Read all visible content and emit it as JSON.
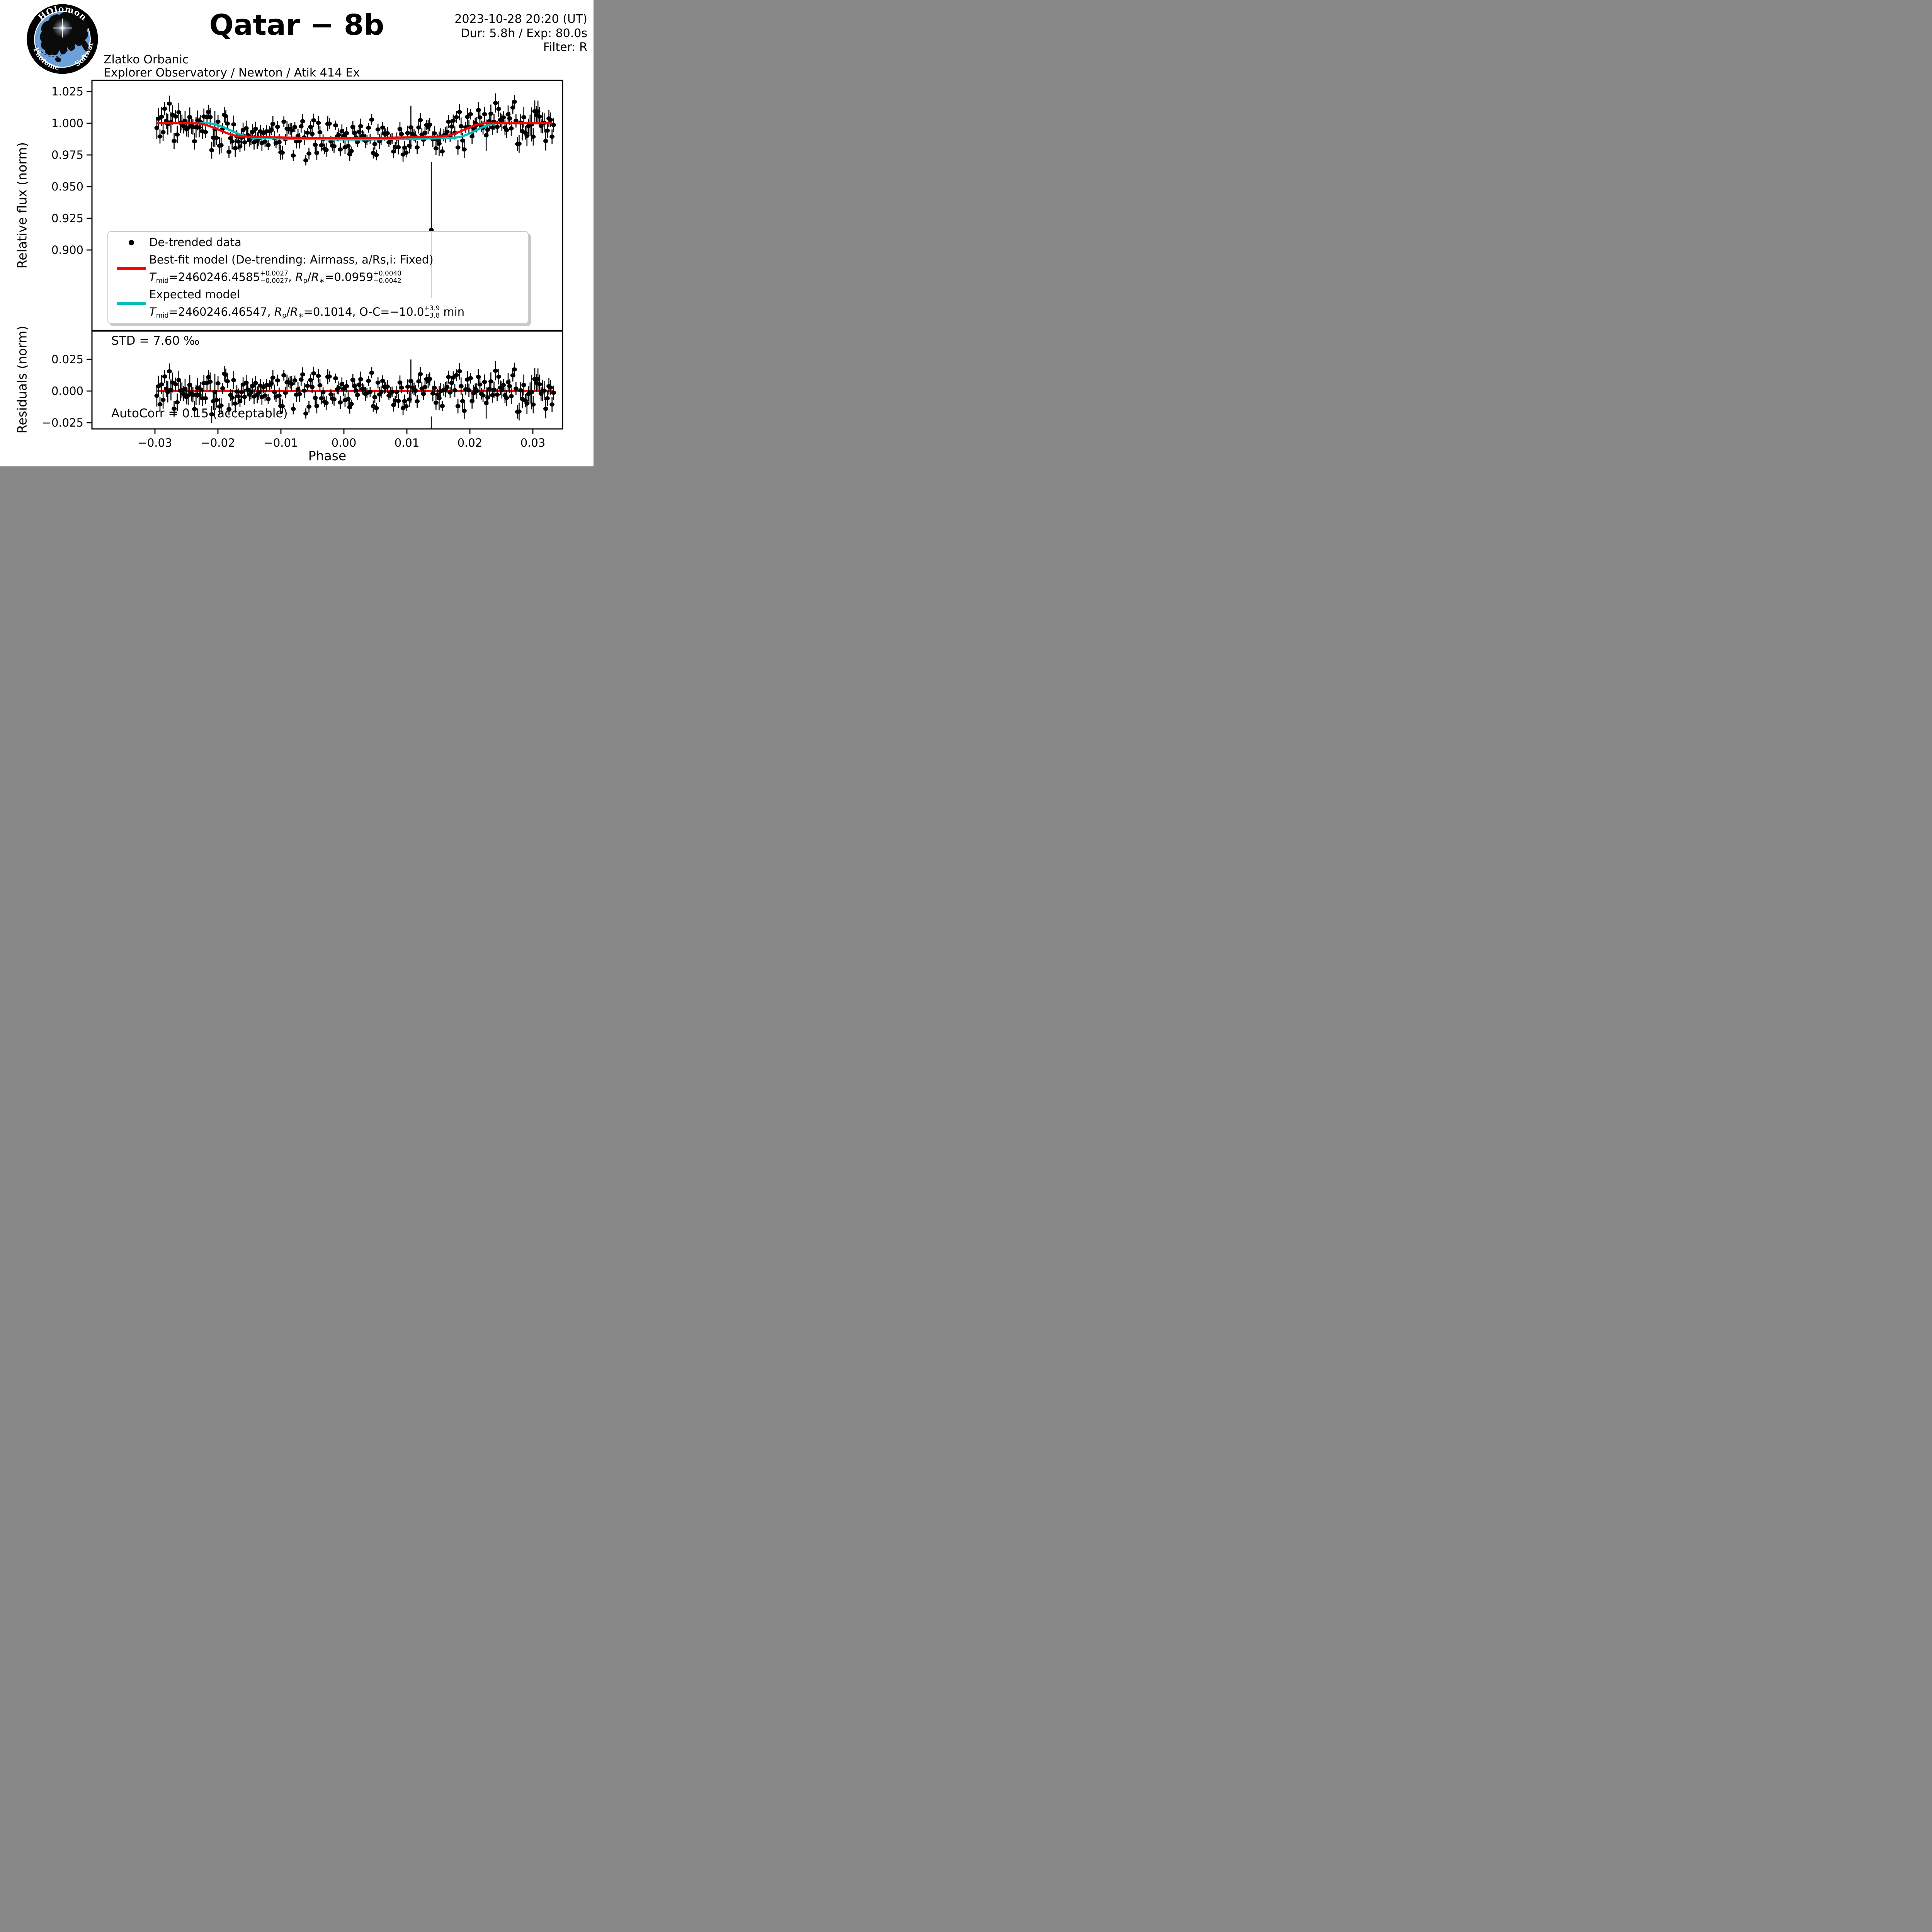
{
  "header": {
    "title": "Qatar − 8b",
    "datetime": "2023-10-28 20:20 (UT)",
    "duration_exposure": "Dur: 5.8h / Exp: 80.0s",
    "filter": "Filter: R",
    "observer": "Zlatko Orbanic",
    "equipment": "Explorer Observatory / Newton / Atik 414 Ex",
    "logo": {
      "ring_top": "HOlomon",
      "ring_left": "Photometric",
      "ring_right": "Software",
      "ring_color": "#000000",
      "disc_color": "#6ca0d8"
    }
  },
  "chart_data": {
    "type": "scatter",
    "title": "Qatar − 8b",
    "xlabel": "Phase",
    "xlim": [
      -0.04,
      0.0347
    ],
    "xticks": {
      "values": [
        -0.03,
        -0.02,
        -0.01,
        0.0,
        0.01,
        0.02,
        0.03
      ],
      "labels": [
        "−0.03",
        "−0.02",
        "−0.01",
        "0.00",
        "0.01",
        "0.02",
        "0.03"
      ]
    },
    "panels": [
      {
        "id": "lightcurve",
        "ylabel": "Relative flux (norm)",
        "ylim": [
          0.8363,
          1.0338
        ],
        "yticks": {
          "values": [
            1.025,
            1.0,
            0.975,
            0.95,
            0.925,
            0.9
          ],
          "labels": [
            "1.025",
            "1.000",
            "0.975",
            "0.950",
            "0.925",
            "0.900"
          ]
        }
      },
      {
        "id": "residuals",
        "ylabel": "Residuals (norm)",
        "ylim": [
          -0.0299,
          0.0476
        ],
        "yticks": {
          "values": [
            0.025,
            0.0,
            -0.025
          ],
          "labels": [
            "0.025",
            "0.000",
            "−0.025"
          ]
        },
        "std_label": "STD = 7.60 ‰",
        "autocorr_label": "AutoCorr = 0.15 (acceptable)",
        "zero_line": {
          "color": "#ff0000",
          "value": 0
        }
      }
    ],
    "data_series": {
      "name": "De-trended data",
      "color": "#000000",
      "n_points": 254,
      "phase_start": -0.0297,
      "phase_step": 0.000249,
      "exposure_s": 80.0,
      "flux_scatter_std": 0.0076,
      "errorbar_flux_base": 0.0055,
      "noise_seed": 20231028,
      "outliers": [
        {
          "phase": 0.0138,
          "flux": 0.9158,
          "err": 0.0535
        },
        {
          "phase": 0.0106,
          "flux": 0.9968,
          "err": 0.017
        }
      ]
    },
    "models": [
      {
        "name": "Best-fit model",
        "color": "#ff0000",
        "Tmid": "2460246.4585",
        "Tmid_err_plus": "+0.0027",
        "Tmid_err_minus": "−0.0027",
        "RpRs": "0.0959",
        "RpRs_err_plus": "+0.0040",
        "RpRs_err_minus": "−0.0042",
        "detrending": "Airmass",
        "aRs_i": "Fixed",
        "shape": {
          "t1": -0.0236,
          "t2": -0.0161,
          "t3": 0.0155,
          "t4": 0.0226,
          "d_edge": 0.0104,
          "d_center": 0.0117
        }
      },
      {
        "name": "Expected model",
        "color": "#00bfbf",
        "Tmid": "2460246.46547",
        "RpRs": "0.1014",
        "OC_min": "−10.0",
        "OC_err_plus": "+3.9",
        "OC_err_minus": "−3.8",
        "shape": {
          "t1": -0.0217,
          "t2": -0.0142,
          "t3": 0.0174,
          "t4": 0.0245,
          "d_edge": 0.0114,
          "d_center": 0.0128
        }
      }
    ],
    "legend": {
      "items": [
        {
          "handle": "dot",
          "handle_color": "#000000",
          "lines": [
            [
              {
                "t": "De-trended data"
              }
            ]
          ]
        },
        {
          "handle": "line",
          "handle_color": "#ff0000",
          "lines": [
            [
              {
                "t": "Best-fit model (De-trending: Airmass, a/Rs,i: Fixed)"
              }
            ],
            [
              {
                "i": "T"
              },
              {
                "sub": "mid"
              },
              {
                "t": "=2460246.4585"
              },
              {
                "stack": [
                  "+0.0027",
                  "−0.0027"
                ]
              },
              {
                "t": ", "
              },
              {
                "i": "R"
              },
              {
                "sub": "p"
              },
              {
                "t": "/"
              },
              {
                "i": "R"
              },
              {
                "sub": "∗"
              },
              {
                "t": "=0.0959"
              },
              {
                "stack": [
                  "+0.0040",
                  "−0.0042"
                ]
              }
            ]
          ]
        },
        {
          "handle": "line",
          "handle_color": "#00bfbf",
          "lines": [
            [
              {
                "t": "Expected model"
              }
            ],
            [
              {
                "i": "T"
              },
              {
                "sub": "mid"
              },
              {
                "t": "=2460246.46547, "
              },
              {
                "i": "R"
              },
              {
                "sub": "p"
              },
              {
                "t": "/"
              },
              {
                "i": "R"
              },
              {
                "sub": "∗"
              },
              {
                "t": "=0.1014, O-C=−10.0"
              },
              {
                "stack": [
                  "+3.9",
                  "−3.8"
                ]
              },
              {
                "t": " min"
              }
            ]
          ]
        }
      ]
    }
  }
}
